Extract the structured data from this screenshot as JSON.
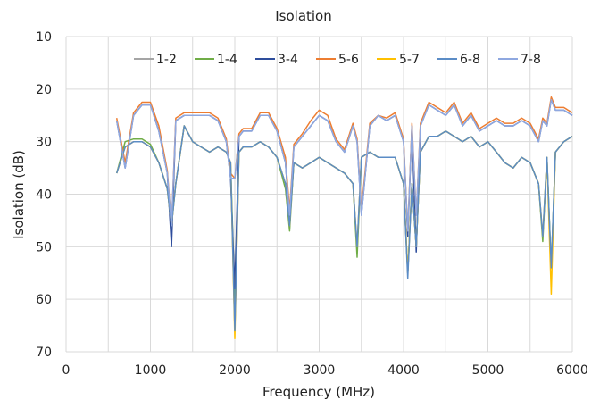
{
  "chart_data": {
    "type": "line",
    "title": "Isolation",
    "xlabel": "Frequency (MHz)",
    "ylabel": "Isolation (dB)",
    "xlim": [
      0,
      6000
    ],
    "ylim": [
      10,
      70
    ],
    "y_axis_inverted": true,
    "x_ticks": [
      0,
      1000,
      2000,
      3000,
      4000,
      5000,
      6000
    ],
    "y_ticks": [
      10,
      20,
      30,
      40,
      50,
      60,
      70
    ],
    "grid": true,
    "legend_position": "top",
    "series": [
      {
        "name": "1-2",
        "color": "#a5a5a5",
        "x": [
          600,
          700,
          800,
          900,
          1000,
          1100,
          1200,
          1250,
          1300,
          1400,
          1500,
          1600,
          1700,
          1800,
          1900,
          1950,
          2000,
          2050,
          2100,
          2200,
          2300,
          2400,
          2500,
          2600,
          2650,
          2700,
          2800,
          2900,
          3000,
          3100,
          3200,
          3300,
          3400,
          3450,
          3500,
          3600,
          3700,
          3800,
          3900,
          4000,
          4050,
          4100,
          4150,
          4200,
          4300,
          4400,
          4500,
          4600,
          4700,
          4800,
          4900,
          5000,
          5100,
          5200,
          5300,
          5400,
          5500,
          5600,
          5650,
          5700,
          5750,
          5800,
          5900,
          6000
        ],
        "y": [
          36,
          31,
          30,
          30,
          31,
          34,
          39,
          46,
          38,
          27,
          30,
          31,
          32,
          31,
          32,
          34,
          66,
          32,
          31,
          31,
          30,
          31,
          33,
          38,
          46,
          34,
          35,
          34,
          33,
          34,
          35,
          36,
          38,
          50,
          33,
          32,
          33,
          33,
          33,
          38,
          55,
          38,
          50,
          32,
          29,
          29,
          28,
          29,
          30,
          29,
          31,
          30,
          32,
          34,
          35,
          33,
          34,
          38,
          48,
          33,
          54,
          32,
          30,
          29
        ]
      },
      {
        "name": "1-4",
        "color": "#70ad47",
        "x": [
          600,
          700,
          800,
          900,
          1000,
          1100,
          1200,
          1250,
          1300,
          1400,
          1500,
          1600,
          1700,
          1800,
          1900,
          1950,
          2000,
          2050,
          2100,
          2200,
          2300,
          2400,
          2500,
          2600,
          2650,
          2700,
          2800,
          2900,
          3000,
          3100,
          3200,
          3300,
          3400,
          3450,
          3500,
          3600,
          3700,
          3800,
          3900,
          4000,
          4050,
          4100,
          4150,
          4200,
          4300,
          4400,
          4500,
          4600,
          4700,
          4800,
          4900,
          5000,
          5100,
          5200,
          5300,
          5400,
          5500,
          5600,
          5650,
          5700,
          5750,
          5800,
          5900,
          6000
        ],
        "y": [
          36,
          30,
          29.5,
          29.5,
          30.5,
          34,
          39,
          46,
          38,
          27,
          30,
          31,
          32,
          31,
          32,
          34,
          60,
          32,
          31,
          31,
          30,
          31,
          33,
          39,
          47,
          34,
          35,
          34,
          33,
          34,
          35,
          36,
          38,
          52,
          33,
          32,
          33,
          33,
          33,
          38,
          55,
          38,
          50,
          32,
          29,
          29,
          28,
          29,
          30,
          29,
          31,
          30,
          32,
          34,
          35,
          33,
          34,
          38,
          49,
          33,
          54,
          32,
          30,
          29
        ]
      },
      {
        "name": "3-4",
        "color": "#2e4d9c",
        "x": [
          600,
          700,
          800,
          900,
          1000,
          1100,
          1200,
          1250,
          1300,
          1400,
          1500,
          1600,
          1700,
          1800,
          1900,
          1950,
          2000,
          2050,
          2100,
          2200,
          2300,
          2400,
          2500,
          2600,
          2650,
          2700,
          2800,
          2900,
          3000,
          3100,
          3200,
          3300,
          3400,
          3450,
          3500,
          3600,
          3700,
          3800,
          3900,
          4000,
          4050,
          4100,
          4150,
          4200,
          4300,
          4400,
          4500,
          4600,
          4700,
          4800,
          4900,
          5000,
          5100,
          5200,
          5300,
          5400,
          5500,
          5600,
          5650,
          5700,
          5750,
          5800,
          5900,
          6000
        ],
        "y": [
          26,
          35,
          25,
          23,
          23,
          28,
          36,
          50,
          26,
          25,
          25,
          25,
          25,
          26,
          30,
          37,
          58,
          29,
          28,
          28,
          25,
          25,
          28,
          34,
          45,
          31,
          29,
          27,
          25,
          26,
          30,
          32,
          27,
          30,
          44,
          27,
          25,
          26,
          25,
          30,
          48,
          27,
          51,
          27,
          23,
          24,
          25,
          23,
          27,
          25,
          28,
          27,
          26,
          27,
          27,
          26,
          27,
          30,
          26,
          27,
          22,
          24,
          24,
          25
        ]
      },
      {
        "name": "5-6",
        "color": "#ed7d31",
        "x": [
          600,
          700,
          800,
          900,
          1000,
          1100,
          1200,
          1250,
          1300,
          1400,
          1500,
          1600,
          1700,
          1800,
          1900,
          1950,
          2000,
          2050,
          2100,
          2200,
          2300,
          2400,
          2500,
          2600,
          2650,
          2700,
          2800,
          2900,
          3000,
          3100,
          3200,
          3300,
          3400,
          3450,
          3500,
          3600,
          3700,
          3800,
          3900,
          4000,
          4050,
          4100,
          4150,
          4200,
          4300,
          4400,
          4500,
          4600,
          4700,
          4800,
          4900,
          5000,
          5100,
          5200,
          5300,
          5400,
          5500,
          5600,
          5650,
          5700,
          5750,
          5800,
          5900,
          6000
        ],
        "y": [
          25.5,
          34,
          24.5,
          22.5,
          22.5,
          27,
          35.5,
          46,
          25.5,
          24.5,
          24.5,
          24.5,
          24.5,
          25.5,
          29.5,
          36,
          37,
          28.5,
          27.5,
          27.5,
          24.5,
          24.5,
          27.5,
          33,
          43,
          30.5,
          28.5,
          26,
          24,
          25,
          29.5,
          31.5,
          26.5,
          29.5,
          43,
          26.5,
          25,
          25.5,
          24.5,
          29.5,
          47,
          26.5,
          44,
          26.5,
          22.5,
          23.5,
          24.5,
          22.5,
          26.5,
          24.5,
          27.5,
          26.5,
          25.5,
          26.5,
          26.5,
          25.5,
          26.5,
          29.5,
          25.5,
          26.5,
          21.5,
          23.5,
          23.5,
          24.5
        ]
      },
      {
        "name": "5-7",
        "color": "#ffc000",
        "x": [
          600,
          700,
          800,
          900,
          1000,
          1100,
          1200,
          1250,
          1300,
          1400,
          1500,
          1600,
          1700,
          1800,
          1900,
          1950,
          2000,
          2050,
          2100,
          2200,
          2300,
          2400,
          2500,
          2600,
          2650,
          2700,
          2800,
          2900,
          3000,
          3100,
          3200,
          3300,
          3400,
          3450,
          3500,
          3600,
          3700,
          3800,
          3900,
          4000,
          4050,
          4100,
          4150,
          4200,
          4300,
          4400,
          4500,
          4600,
          4700,
          4800,
          4900,
          5000,
          5100,
          5200,
          5300,
          5400,
          5500,
          5600,
          5650,
          5700,
          5750,
          5800,
          5900,
          6000
        ],
        "y": [
          36,
          31,
          30,
          30,
          31,
          34,
          39,
          46,
          38,
          27,
          30,
          31,
          32,
          31,
          32,
          34,
          67.5,
          32,
          31,
          31,
          30,
          31,
          33,
          38,
          46,
          34,
          35,
          34,
          33,
          34,
          35,
          36,
          38,
          50,
          33,
          32,
          33,
          33,
          33,
          38,
          55,
          38,
          50,
          32,
          29,
          29,
          28,
          29,
          30,
          29,
          31,
          30,
          32,
          34,
          35,
          33,
          34,
          38,
          48,
          33,
          59,
          32,
          30,
          29
        ]
      },
      {
        "name": "6-8",
        "color": "#5b8cc6",
        "x": [
          600,
          700,
          800,
          900,
          1000,
          1100,
          1200,
          1250,
          1300,
          1400,
          1500,
          1600,
          1700,
          1800,
          1900,
          1950,
          2000,
          2050,
          2100,
          2200,
          2300,
          2400,
          2500,
          2600,
          2650,
          2700,
          2800,
          2900,
          3000,
          3100,
          3200,
          3300,
          3400,
          3450,
          3500,
          3600,
          3700,
          3800,
          3900,
          4000,
          4050,
          4100,
          4150,
          4200,
          4300,
          4400,
          4500,
          4600,
          4700,
          4800,
          4900,
          5000,
          5100,
          5200,
          5300,
          5400,
          5500,
          5600,
          5650,
          5700,
          5750,
          5800,
          5900,
          6000
        ],
        "y": [
          36,
          31,
          30,
          30,
          31,
          34,
          39,
          46,
          38,
          27,
          30,
          31,
          32,
          31,
          32,
          34,
          66,
          32,
          31,
          31,
          30,
          31,
          33,
          38,
          46,
          34,
          35,
          34,
          33,
          34,
          35,
          36,
          38,
          50,
          33,
          32,
          33,
          33,
          33,
          38,
          56,
          38,
          50,
          32,
          29,
          29,
          28,
          29,
          30,
          29,
          31,
          30,
          32,
          34,
          35,
          33,
          34,
          38,
          48,
          33,
          54,
          32,
          30,
          29
        ]
      },
      {
        "name": "7-8",
        "color": "#8fa8e0",
        "x": [
          600,
          700,
          800,
          900,
          1000,
          1100,
          1200,
          1250,
          1300,
          1400,
          1500,
          1600,
          1700,
          1800,
          1900,
          1950,
          2000,
          2050,
          2100,
          2200,
          2300,
          2400,
          2500,
          2600,
          2650,
          2700,
          2800,
          2900,
          3000,
          3100,
          3200,
          3300,
          3400,
          3450,
          3500,
          3600,
          3700,
          3800,
          3900,
          4000,
          4050,
          4100,
          4150,
          4200,
          4300,
          4400,
          4500,
          4600,
          4700,
          4800,
          4900,
          5000,
          5100,
          5200,
          5300,
          5400,
          5500,
          5600,
          5650,
          5700,
          5750,
          5800,
          5900,
          6000
        ],
        "y": [
          26,
          35,
          25,
          23,
          23,
          28,
          36,
          46,
          26,
          25,
          25,
          25,
          25,
          26,
          30,
          37,
          37,
          29,
          28,
          28,
          25,
          25,
          28,
          34,
          44,
          31,
          29,
          27,
          25,
          26,
          30,
          32,
          27,
          30,
          44,
          27,
          25,
          26,
          25,
          30,
          47,
          27,
          44,
          27,
          23,
          24,
          25,
          23,
          27,
          25,
          28,
          27,
          26,
          27,
          27,
          26,
          27,
          30,
          26,
          27,
          22,
          24,
          24,
          25
        ]
      }
    ]
  }
}
